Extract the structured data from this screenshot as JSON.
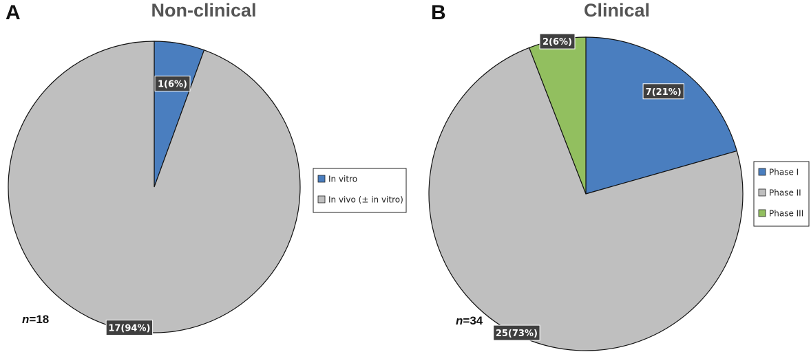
{
  "chart_data": [
    {
      "type": "pie",
      "panel": "A",
      "title": "Non-clinical",
      "n_label": {
        "prefix": "n",
        "value": "=18"
      },
      "slices": [
        {
          "label": "In vitro",
          "value": 1,
          "percent": 6,
          "data_label": "1(6%)",
          "color": "#4a7ebf"
        },
        {
          "label": "In vivo (± in vitro)",
          "value": 17,
          "percent": 94,
          "data_label": "17(94%)",
          "color": "#bfbfbf"
        }
      ],
      "legend_position": "right"
    },
    {
      "type": "pie",
      "panel": "B",
      "title": "Clinical",
      "n_label": {
        "prefix": "n",
        "value": "=34"
      },
      "slices": [
        {
          "label": "Phase I",
          "value": 7,
          "percent": 21,
          "data_label": "7(21%)",
          "color": "#4a7ebf"
        },
        {
          "label": "Phase II",
          "value": 25,
          "percent": 73,
          "data_label": "25(73%)",
          "color": "#bfbfbf"
        },
        {
          "label": "Phase III",
          "value": 2,
          "percent": 6,
          "data_label": "2(6%)",
          "color": "#92bf5f"
        }
      ],
      "legend_position": "right"
    }
  ]
}
